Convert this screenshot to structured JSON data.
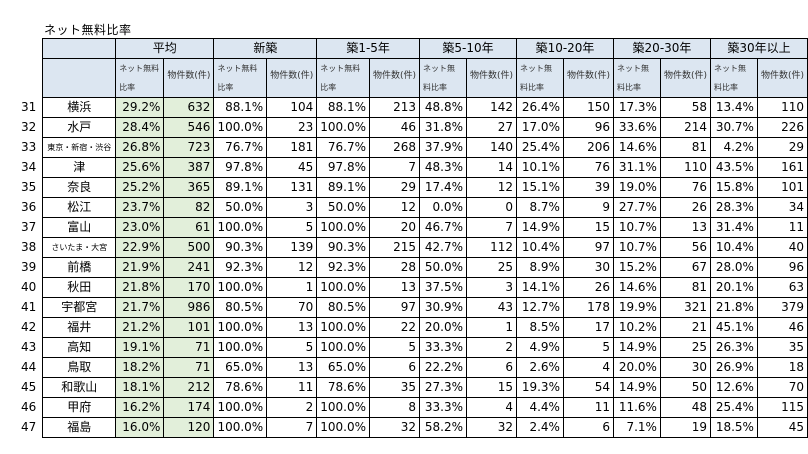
{
  "title": "ネット無料比率",
  "groups": [
    "平均",
    "新築",
    "築1-5年",
    "築5-10年",
    "築10-20年",
    "築20-30年",
    "築30年以上"
  ],
  "sub_rate": "ネット無料比率",
  "sub_count": "物件数(件)",
  "rows": [
    {
      "n": "31",
      "city": "横浜",
      "v": [
        "29.2%",
        "632",
        "88.1%",
        "104",
        "88.1%",
        "213",
        "48.8%",
        "142",
        "26.4%",
        "150",
        "17.3%",
        "58",
        "13.4%",
        "110"
      ]
    },
    {
      "n": "32",
      "city": "水戸",
      "v": [
        "28.4%",
        "546",
        "100.0%",
        "23",
        "100.0%",
        "46",
        "31.8%",
        "27",
        "17.0%",
        "96",
        "33.6%",
        "214",
        "30.7%",
        "226"
      ]
    },
    {
      "n": "33",
      "city": "東京・新宿・渋谷",
      "v": [
        "26.8%",
        "723",
        "76.7%",
        "181",
        "76.7%",
        "268",
        "37.9%",
        "140",
        "25.4%",
        "206",
        "14.6%",
        "81",
        "4.2%",
        "29"
      ]
    },
    {
      "n": "34",
      "city": "津",
      "v": [
        "25.6%",
        "387",
        "97.8%",
        "45",
        "97.8%",
        "7",
        "48.3%",
        "14",
        "10.1%",
        "76",
        "31.1%",
        "110",
        "43.5%",
        "161"
      ]
    },
    {
      "n": "35",
      "city": "奈良",
      "v": [
        "25.2%",
        "365",
        "89.1%",
        "131",
        "89.1%",
        "29",
        "17.4%",
        "12",
        "15.1%",
        "39",
        "19.0%",
        "76",
        "15.8%",
        "101"
      ]
    },
    {
      "n": "36",
      "city": "松江",
      "v": [
        "23.7%",
        "82",
        "50.0%",
        "3",
        "50.0%",
        "12",
        "0.0%",
        "0",
        "8.7%",
        "9",
        "27.7%",
        "26",
        "28.3%",
        "34"
      ]
    },
    {
      "n": "37",
      "city": "富山",
      "v": [
        "23.0%",
        "61",
        "100.0%",
        "5",
        "100.0%",
        "20",
        "46.7%",
        "7",
        "14.9%",
        "15",
        "10.7%",
        "13",
        "31.4%",
        "11"
      ]
    },
    {
      "n": "38",
      "city": "さいたま・大宮",
      "v": [
        "22.9%",
        "500",
        "90.3%",
        "139",
        "90.3%",
        "215",
        "42.7%",
        "112",
        "10.4%",
        "97",
        "10.7%",
        "56",
        "10.4%",
        "40"
      ]
    },
    {
      "n": "39",
      "city": "前橋",
      "v": [
        "21.9%",
        "241",
        "92.3%",
        "12",
        "92.3%",
        "28",
        "50.0%",
        "25",
        "8.9%",
        "30",
        "15.2%",
        "67",
        "28.0%",
        "96"
      ]
    },
    {
      "n": "40",
      "city": "秋田",
      "v": [
        "21.8%",
        "170",
        "100.0%",
        "1",
        "100.0%",
        "13",
        "37.5%",
        "3",
        "14.1%",
        "26",
        "14.6%",
        "81",
        "20.1%",
        "63"
      ]
    },
    {
      "n": "41",
      "city": "宇都宮",
      "v": [
        "21.7%",
        "986",
        "80.5%",
        "70",
        "80.5%",
        "97",
        "30.9%",
        "43",
        "12.7%",
        "178",
        "19.9%",
        "321",
        "21.8%",
        "379"
      ]
    },
    {
      "n": "42",
      "city": "福井",
      "v": [
        "21.2%",
        "101",
        "100.0%",
        "13",
        "100.0%",
        "22",
        "20.0%",
        "1",
        "8.5%",
        "17",
        "10.2%",
        "21",
        "45.1%",
        "46"
      ]
    },
    {
      "n": "43",
      "city": "高知",
      "v": [
        "19.1%",
        "71",
        "100.0%",
        "5",
        "100.0%",
        "5",
        "33.3%",
        "2",
        "4.9%",
        "5",
        "14.9%",
        "25",
        "26.3%",
        "35"
      ]
    },
    {
      "n": "44",
      "city": "鳥取",
      "v": [
        "18.2%",
        "71",
        "65.0%",
        "13",
        "65.0%",
        "6",
        "22.2%",
        "6",
        "2.6%",
        "4",
        "20.0%",
        "30",
        "26.9%",
        "18"
      ]
    },
    {
      "n": "45",
      "city": "和歌山",
      "v": [
        "18.1%",
        "212",
        "78.6%",
        "11",
        "78.6%",
        "35",
        "27.3%",
        "15",
        "19.3%",
        "54",
        "14.9%",
        "50",
        "12.6%",
        "70"
      ]
    },
    {
      "n": "46",
      "city": "甲府",
      "v": [
        "16.2%",
        "174",
        "100.0%",
        "2",
        "100.0%",
        "8",
        "33.3%",
        "4",
        "4.4%",
        "11",
        "11.6%",
        "48",
        "25.4%",
        "115"
      ]
    },
    {
      "n": "47",
      "city": "福島",
      "v": [
        "16.0%",
        "120",
        "100.0%",
        "7",
        "100.0%",
        "32",
        "58.2%",
        "32",
        "2.4%",
        "6",
        "7.1%",
        "19",
        "18.5%",
        "45"
      ]
    }
  ]
}
